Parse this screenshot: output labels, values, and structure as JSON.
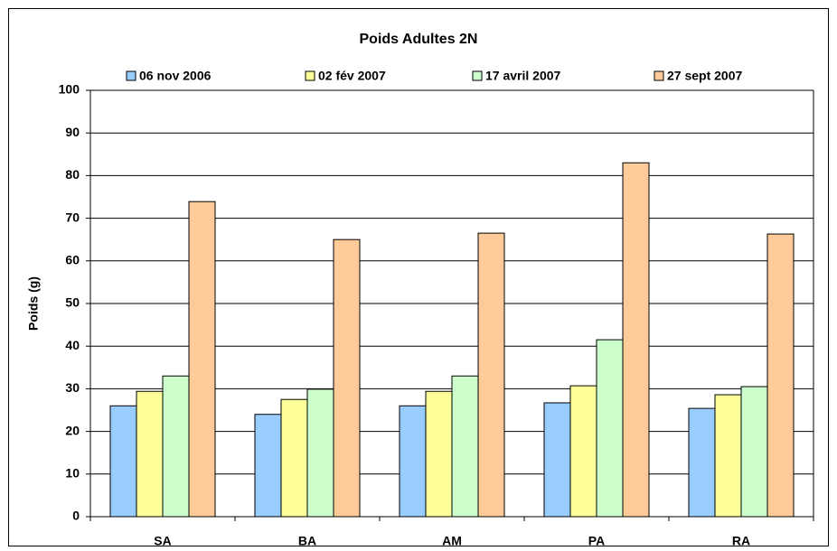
{
  "chart_data": {
    "type": "bar",
    "title": "Poids Adultes 2N",
    "y_label": "Poids (g)",
    "categories": [
      "SA",
      "BA",
      "AM",
      "PA",
      "RA"
    ],
    "series": [
      {
        "name": "06 nov 2006",
        "color": "#99ccff",
        "values": [
          26,
          24,
          26,
          26.7,
          25.4
        ]
      },
      {
        "name": "02 fév 2007",
        "color": "#ffff99",
        "values": [
          29.4,
          27.5,
          29.4,
          30.7,
          28.6
        ]
      },
      {
        "name": "17 avril 2007",
        "color": "#ccffcc",
        "values": [
          33,
          29.9,
          33,
          41.5,
          30.5
        ]
      },
      {
        "name": "27 sept 2007",
        "color": "#ffcc99",
        "values": [
          73.9,
          65,
          66.5,
          83,
          66.3
        ]
      }
    ],
    "ylim": [
      0,
      100
    ],
    "yticks": [
      0,
      10,
      20,
      30,
      40,
      50,
      60,
      70,
      80,
      90,
      100
    ],
    "grid": true
  }
}
